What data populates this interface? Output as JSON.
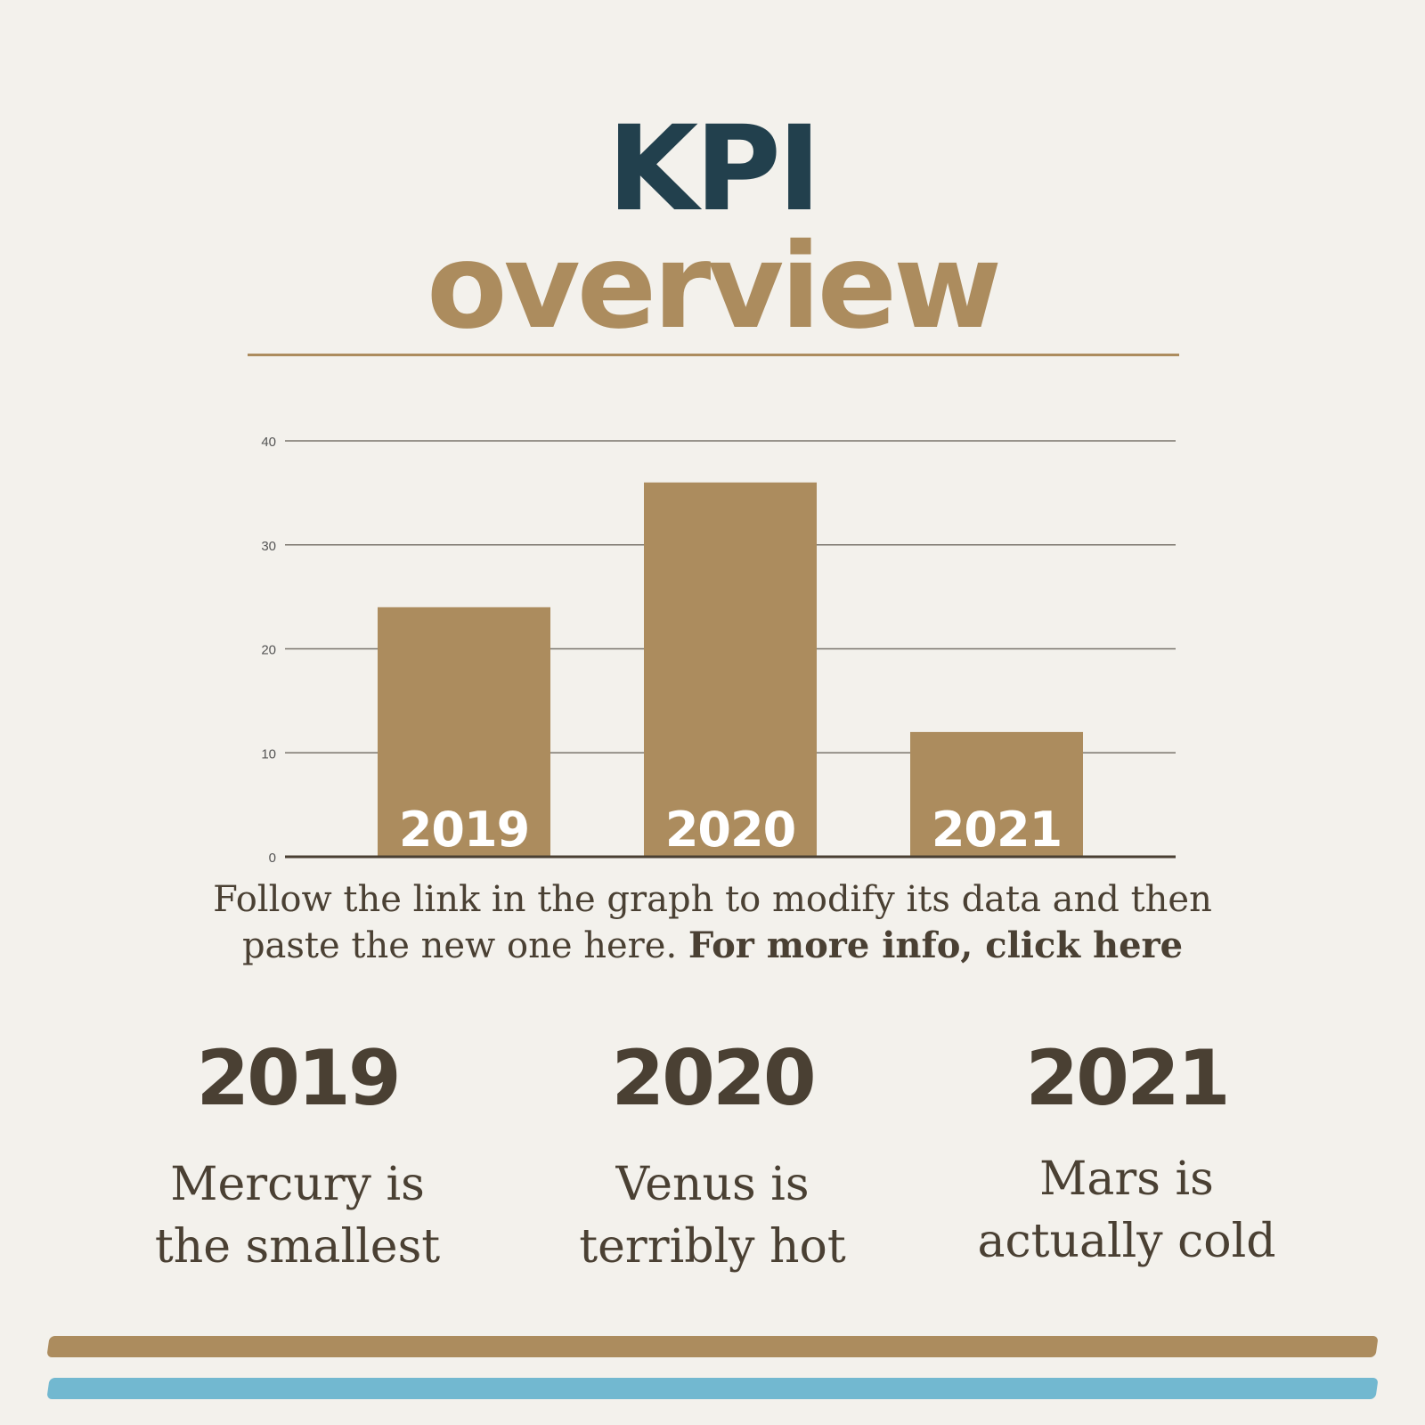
{
  "header": {
    "title_line1": "KPI",
    "title_line2": "overview"
  },
  "chart_data": {
    "type": "bar",
    "categories": [
      "2019",
      "2020",
      "2021"
    ],
    "values": [
      24,
      36,
      12
    ],
    "ylim": [
      0,
      40
    ],
    "yticks": [
      0,
      10,
      20,
      30,
      40
    ],
    "grid": true,
    "bar_color": "#ac8c5e",
    "title": "",
    "xlabel": "",
    "ylabel": ""
  },
  "caption": {
    "text": "Follow the link in the graph to modify its data and then paste the new one here. ",
    "link": "For more info, click here"
  },
  "years": [
    {
      "year": "2019",
      "line1": "Mercury is",
      "line2": "the smallest"
    },
    {
      "year": "2020",
      "line1": "Venus is",
      "line2": "terribly hot"
    },
    {
      "year": "2021",
      "line1": "Mars is",
      "line2": "actually cold"
    }
  ],
  "colors": {
    "title_dark": "#22404d",
    "accent_brown": "#ac8c5e",
    "accent_blue": "#72b8d0",
    "text_dark": "#4a4033",
    "background": "#f3f1ec"
  }
}
